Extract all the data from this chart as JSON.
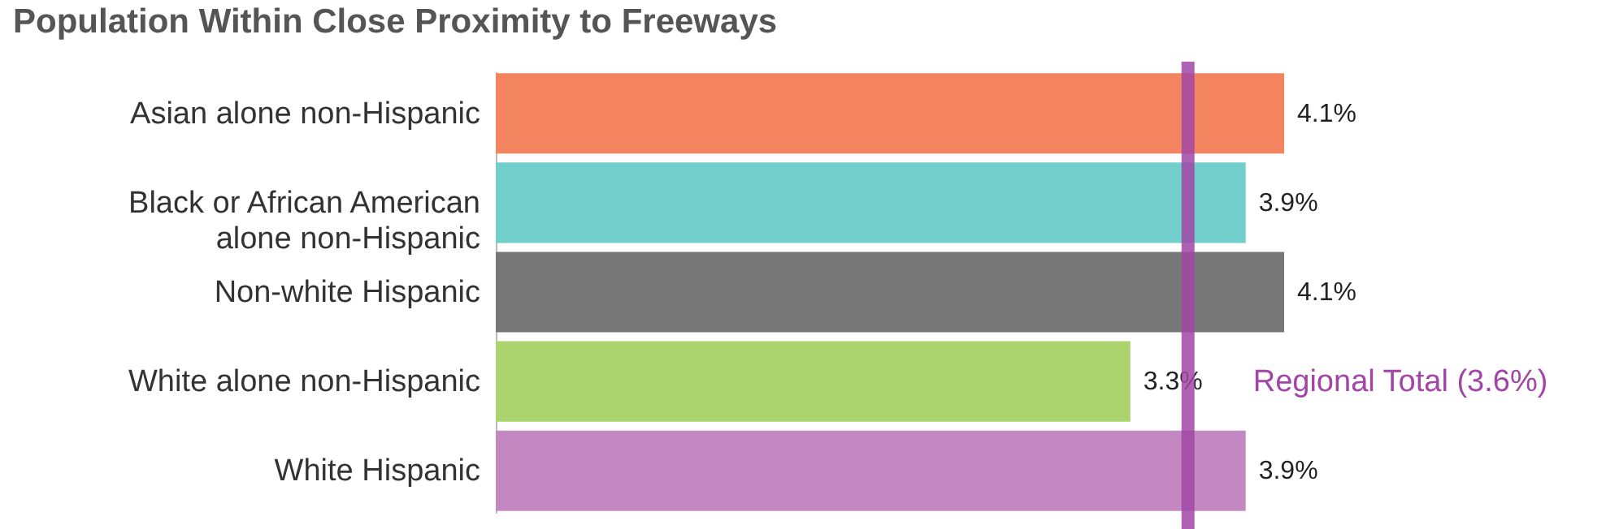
{
  "chart_data": {
    "type": "bar",
    "orientation": "horizontal",
    "title": "Population Within Close Proximity to Freeways",
    "categories": [
      "Asian alone non-Hispanic",
      "Black or African American alone non-Hispanic",
      "Non-white Hispanic",
      "White alone non-Hispanic",
      "White Hispanic"
    ],
    "values": [
      4.1,
      3.9,
      4.1,
      3.3,
      3.9
    ],
    "colors": [
      "#f4845f",
      "#72cfcb",
      "#777777",
      "#abd46f",
      "#c387c1"
    ],
    "value_labels": [
      "4.1%",
      "3.9%",
      "4.1%",
      "3.3%",
      "3.9%"
    ],
    "ref_lines": [
      {
        "axis": "x",
        "value": 3.6,
        "label": "Regional Total (3.6%)",
        "color": "#a146a6"
      }
    ]
  }
}
